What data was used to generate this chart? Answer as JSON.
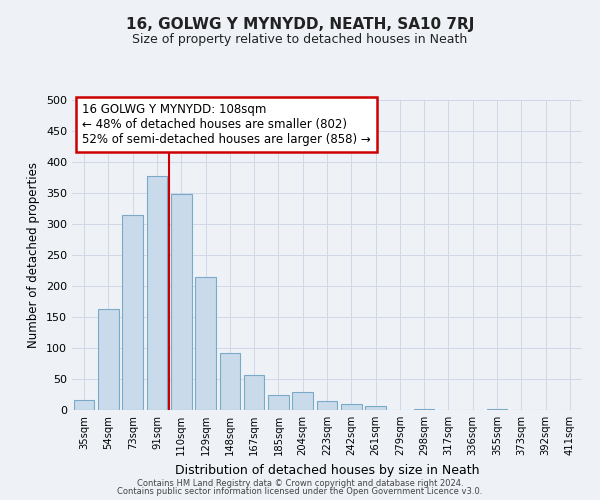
{
  "title": "16, GOLWG Y MYNYDD, NEATH, SA10 7RJ",
  "subtitle": "Size of property relative to detached houses in Neath",
  "xlabel": "Distribution of detached houses by size in Neath",
  "ylabel": "Number of detached properties",
  "bar_labels": [
    "35sqm",
    "54sqm",
    "73sqm",
    "91sqm",
    "110sqm",
    "129sqm",
    "148sqm",
    "167sqm",
    "185sqm",
    "204sqm",
    "223sqm",
    "242sqm",
    "261sqm",
    "279sqm",
    "298sqm",
    "317sqm",
    "336sqm",
    "355sqm",
    "373sqm",
    "392sqm",
    "411sqm"
  ],
  "bar_values": [
    16,
    163,
    315,
    377,
    348,
    214,
    92,
    56,
    25,
    29,
    15,
    9,
    6,
    0,
    2,
    0,
    0,
    1,
    0,
    0,
    0
  ],
  "bar_color": "#c9daea",
  "bar_edge_color": "#7aaac8",
  "vline_color": "#cc0000",
  "vline_x_index": 3.5,
  "annotation_title": "16 GOLWG Y MYNYDD: 108sqm",
  "annotation_line1": "← 48% of detached houses are smaller (802)",
  "annotation_line2": "52% of semi-detached houses are larger (858) →",
  "annotation_box_color": "#ffffff",
  "annotation_box_edge": "#cc0000",
  "ylim": [
    0,
    500
  ],
  "yticks": [
    0,
    50,
    100,
    150,
    200,
    250,
    300,
    350,
    400,
    450,
    500
  ],
  "footer1": "Contains HM Land Registry data © Crown copyright and database right 2024.",
  "footer2": "Contains public sector information licensed under the Open Government Licence v3.0.",
  "bg_color": "#eef2f7",
  "grid_color": "#d0d8e8",
  "title_fontsize": 11,
  "subtitle_fontsize": 9
}
